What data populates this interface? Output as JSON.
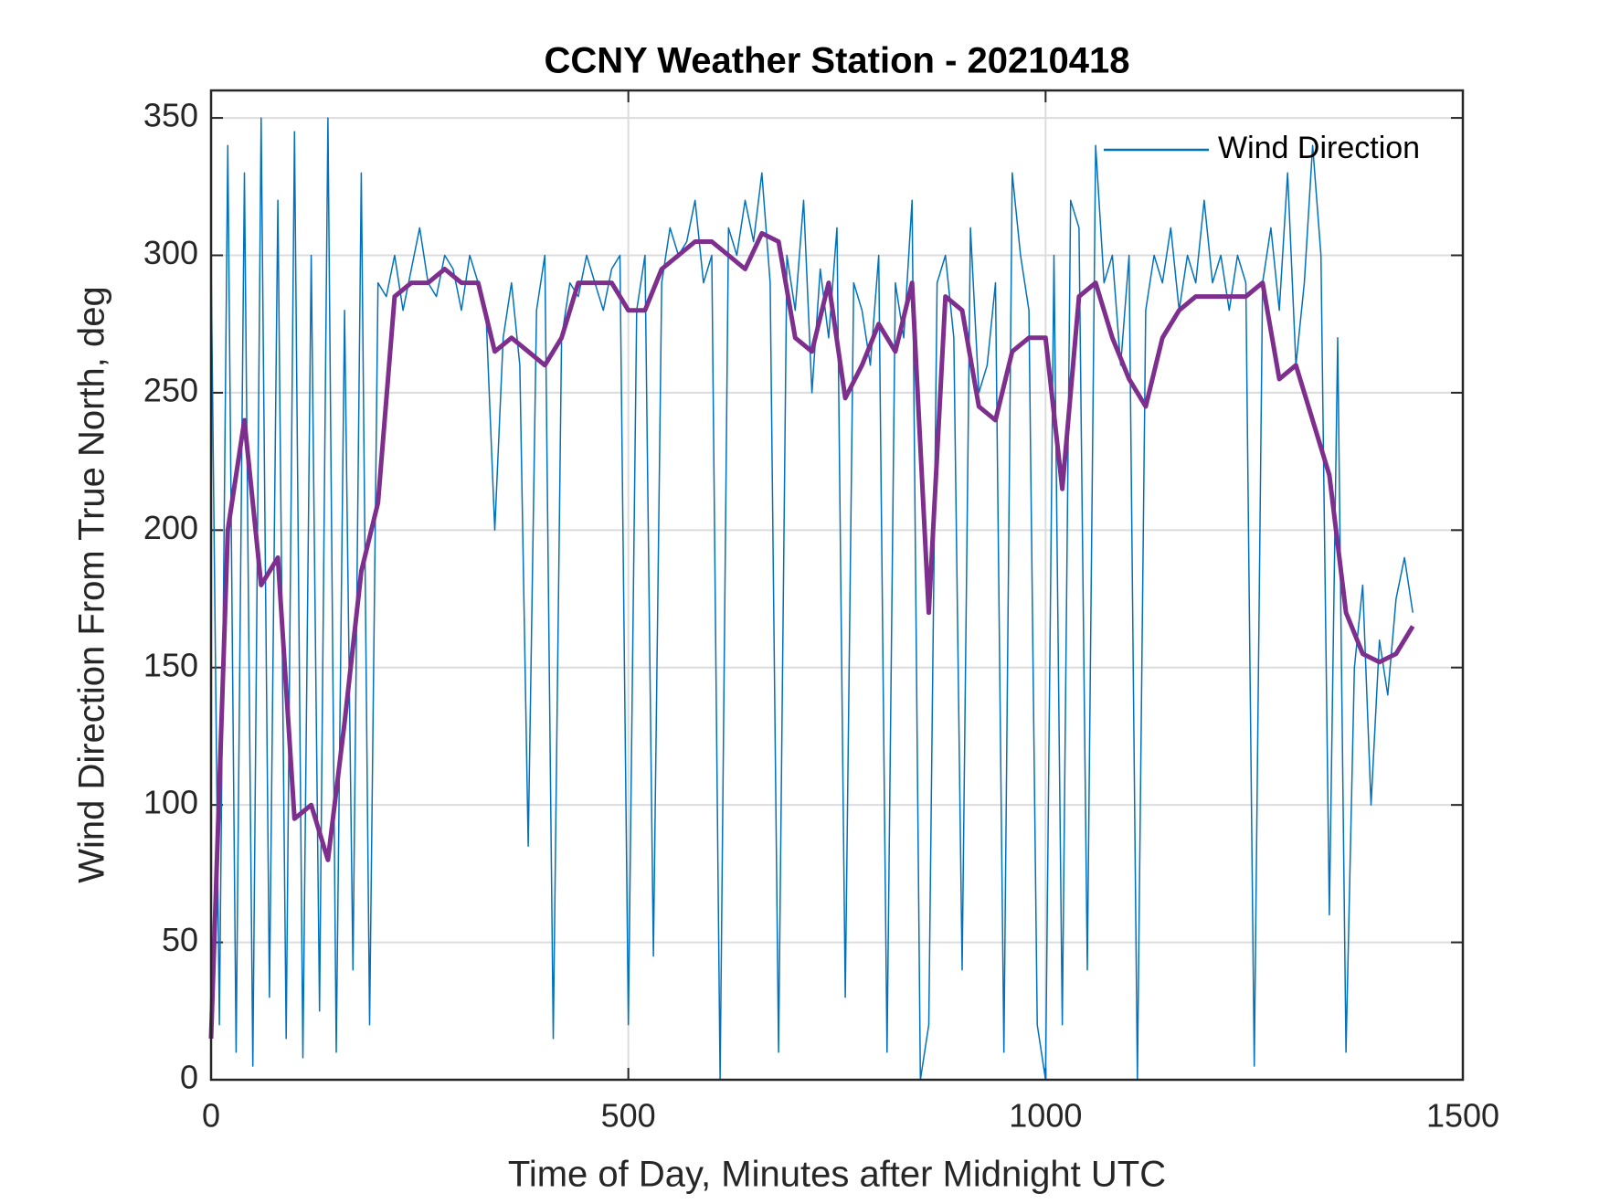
{
  "chart_data": {
    "type": "line",
    "title": "CCNY Weather Station - 20210418",
    "x_label": "Time of Day, Minutes after Midnight UTC",
    "y_label": "Wind Direction From True North, deg",
    "xlim": [
      0,
      1500
    ],
    "xticks": [
      0,
      500,
      1000,
      1500
    ],
    "ylim": [
      0,
      360
    ],
    "yticks": [
      0,
      50,
      100,
      150,
      200,
      250,
      300,
      350
    ],
    "grid": true,
    "legend": "upper right",
    "series": [
      {
        "name": "Wind Direction",
        "color": "#0072bd",
        "width": 1.5,
        "x": [
          0,
          10,
          20,
          30,
          40,
          50,
          60,
          70,
          80,
          90,
          100,
          110,
          120,
          130,
          140,
          150,
          160,
          170,
          180,
          190,
          200,
          210,
          220,
          230,
          240,
          250,
          260,
          270,
          280,
          290,
          300,
          310,
          320,
          330,
          340,
          350,
          360,
          370,
          380,
          390,
          400,
          410,
          420,
          430,
          440,
          450,
          460,
          470,
          480,
          490,
          500,
          510,
          520,
          530,
          540,
          550,
          560,
          570,
          580,
          590,
          600,
          610,
          620,
          630,
          640,
          650,
          660,
          670,
          680,
          690,
          700,
          710,
          720,
          730,
          740,
          750,
          760,
          770,
          780,
          790,
          800,
          810,
          820,
          830,
          840,
          850,
          860,
          870,
          880,
          890,
          900,
          910,
          920,
          930,
          940,
          950,
          960,
          970,
          980,
          990,
          1000,
          1010,
          1020,
          1030,
          1040,
          1050,
          1060,
          1070,
          1080,
          1090,
          1100,
          1110,
          1120,
          1130,
          1140,
          1150,
          1160,
          1170,
          1180,
          1190,
          1200,
          1210,
          1220,
          1230,
          1240,
          1250,
          1260,
          1270,
          1280,
          1290,
          1300,
          1310,
          1320,
          1330,
          1340,
          1350,
          1360,
          1370,
          1380,
          1390,
          1400,
          1410,
          1420,
          1430,
          1440
        ],
        "values": [
          300,
          20,
          340,
          10,
          330,
          5,
          350,
          30,
          320,
          15,
          345,
          8,
          300,
          25,
          350,
          10,
          280,
          40,
          330,
          20,
          290,
          285,
          300,
          280,
          295,
          310,
          290,
          285,
          300,
          295,
          280,
          300,
          290,
          275,
          200,
          270,
          290,
          260,
          85,
          280,
          300,
          15,
          270,
          290,
          285,
          300,
          290,
          280,
          295,
          300,
          20,
          280,
          300,
          45,
          290,
          310,
          300,
          305,
          320,
          290,
          300,
          0,
          310,
          300,
          320,
          305,
          330,
          290,
          10,
          300,
          280,
          320,
          250,
          295,
          270,
          310,
          30,
          290,
          280,
          260,
          300,
          10,
          290,
          270,
          320,
          0,
          20,
          290,
          300,
          270,
          40,
          310,
          250,
          260,
          290,
          10,
          330,
          300,
          280,
          20,
          0,
          300,
          20,
          320,
          310,
          40,
          340,
          290,
          300,
          260,
          300,
          0,
          280,
          300,
          290,
          310,
          280,
          300,
          290,
          320,
          290,
          300,
          280,
          300,
          290,
          5,
          290,
          310,
          280,
          330,
          260,
          290,
          340,
          300,
          60,
          270,
          10,
          150,
          180,
          100,
          160,
          140,
          175,
          190,
          170
        ]
      },
      {
        "color": "#7e2f8e",
        "width": 5,
        "x": [
          0,
          20,
          40,
          60,
          80,
          100,
          120,
          140,
          160,
          180,
          200,
          220,
          240,
          260,
          280,
          300,
          320,
          340,
          360,
          380,
          400,
          420,
          440,
          460,
          480,
          500,
          520,
          540,
          560,
          580,
          600,
          620,
          640,
          660,
          680,
          700,
          720,
          740,
          760,
          780,
          800,
          820,
          840,
          860,
          880,
          900,
          920,
          940,
          960,
          980,
          1000,
          1020,
          1040,
          1060,
          1080,
          1100,
          1120,
          1140,
          1160,
          1180,
          1200,
          1220,
          1240,
          1260,
          1280,
          1300,
          1320,
          1340,
          1360,
          1380,
          1400,
          1420,
          1440
        ],
        "values": [
          15,
          200,
          240,
          180,
          190,
          95,
          100,
          80,
          130,
          185,
          210,
          285,
          290,
          290,
          295,
          290,
          290,
          265,
          270,
          265,
          260,
          270,
          290,
          290,
          290,
          280,
          280,
          295,
          300,
          305,
          305,
          300,
          295,
          308,
          305,
          270,
          265,
          290,
          248,
          260,
          275,
          265,
          290,
          170,
          285,
          280,
          245,
          240,
          265,
          270,
          270,
          215,
          285,
          290,
          270,
          255,
          245,
          270,
          280,
          285,
          285,
          285,
          285,
          290,
          255,
          260,
          240,
          220,
          170,
          155,
          152,
          155,
          165
        ]
      }
    ]
  }
}
